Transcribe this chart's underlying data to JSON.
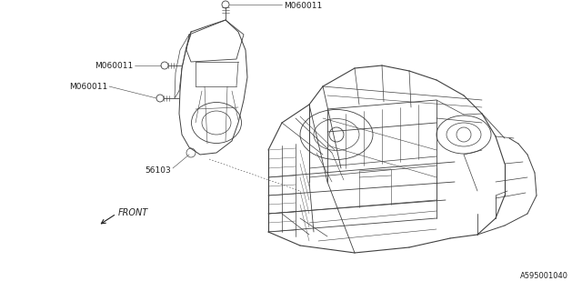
{
  "bg_color": "#ffffff",
  "line_color": "#404040",
  "text_color": "#202020",
  "fig_width": 6.4,
  "fig_height": 3.2,
  "dpi": 100,
  "label_top_bolt": "M060011",
  "label_left_bolt1": "M060011",
  "label_left_bolt2": "M060011",
  "label_part": "56103",
  "part_id": "A595001040",
  "front_label": "FRONT"
}
